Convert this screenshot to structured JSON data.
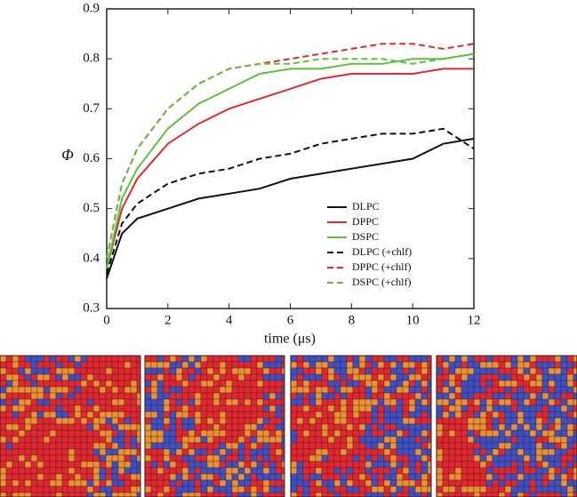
{
  "chart_data": {
    "type": "line",
    "xlabel": "time (μs)",
    "ylabel": "Φ",
    "x": [
      0,
      0.5,
      1,
      2,
      3,
      4,
      5,
      6,
      7,
      8,
      9,
      10,
      11,
      12
    ],
    "xlim": [
      0,
      12
    ],
    "ylim": [
      0.3,
      0.9
    ],
    "xticks": [
      0,
      2,
      4,
      6,
      8,
      10,
      12
    ],
    "yticks": [
      0.3,
      0.4,
      0.5,
      0.6,
      0.7,
      0.8,
      0.9
    ],
    "legend": "lower right",
    "series": [
      {
        "name": "DLPC",
        "color": "#111111",
        "linestyle": "solid",
        "values": [
          0.36,
          0.45,
          0.48,
          0.5,
          0.52,
          0.53,
          0.54,
          0.56,
          0.57,
          0.58,
          0.59,
          0.6,
          0.63,
          0.64
        ]
      },
      {
        "name": "DPPC",
        "color": "#e02b2b",
        "linestyle": "solid",
        "values": [
          0.38,
          0.5,
          0.56,
          0.63,
          0.67,
          0.7,
          0.72,
          0.74,
          0.76,
          0.77,
          0.77,
          0.77,
          0.78,
          0.78
        ]
      },
      {
        "name": "DSPC",
        "color": "#5cc23a",
        "linestyle": "solid",
        "values": [
          0.38,
          0.52,
          0.58,
          0.66,
          0.71,
          0.74,
          0.77,
          0.78,
          0.78,
          0.79,
          0.79,
          0.8,
          0.8,
          0.81
        ]
      },
      {
        "name": "DLPC (+chlf)",
        "color": "#111111",
        "linestyle": "dashed",
        "values": [
          0.37,
          0.47,
          0.51,
          0.55,
          0.57,
          0.58,
          0.6,
          0.61,
          0.63,
          0.64,
          0.65,
          0.65,
          0.66,
          0.62
        ]
      },
      {
        "name": "DPPC (+chlf)",
        "color": "#e02b2b",
        "linestyle": "dashed",
        "values": [
          0.4,
          0.55,
          0.62,
          0.7,
          0.75,
          0.78,
          0.79,
          0.8,
          0.81,
          0.82,
          0.83,
          0.83,
          0.82,
          0.83
        ]
      },
      {
        "name": "DSPC (+chlf)",
        "color": "#5cc23a",
        "linestyle": "dashed",
        "values": [
          0.4,
          0.55,
          0.62,
          0.7,
          0.75,
          0.78,
          0.79,
          0.79,
          0.8,
          0.8,
          0.8,
          0.79,
          0.8,
          0.81
        ]
      }
    ]
  }
}
